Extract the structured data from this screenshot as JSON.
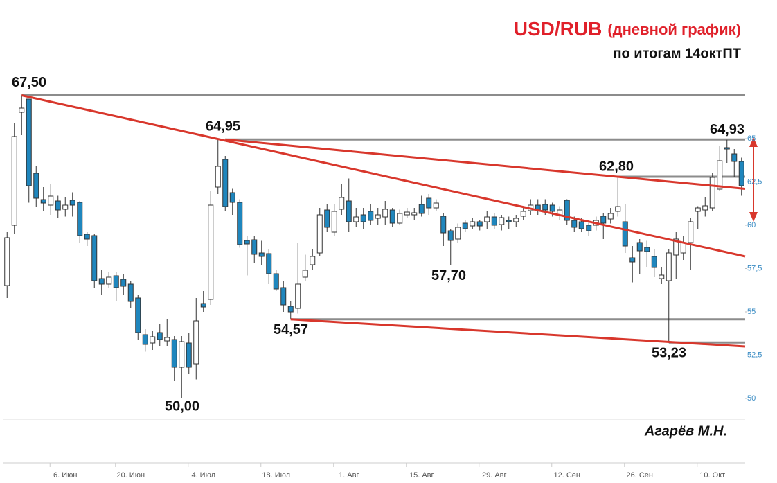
{
  "chart_data": {
    "type": "candlestick",
    "title": "USD/RUB",
    "subtitle": "(дневной график)",
    "note": "по итогам 14октПТ",
    "author": "Агарёв М.Н.",
    "up_color": "#ffffff",
    "down_color": "#1f86bd",
    "level_color": "#8c8c8c",
    "trend_color": "#d8372c",
    "categories": [
      null,
      null,
      null,
      null,
      null,
      null,
      null,
      null,
      "6. Июн",
      null,
      null,
      null,
      null,
      null,
      null,
      null,
      null,
      "20. Июн",
      null,
      null,
      null,
      null,
      null,
      null,
      null,
      null,
      null,
      "4. Июл",
      null,
      null,
      null,
      null,
      null,
      null,
      null,
      null,
      null,
      "18. Июл",
      null,
      null,
      null,
      null,
      null,
      null,
      null,
      null,
      null,
      "1. Авг",
      null,
      null,
      null,
      null,
      null,
      null,
      null,
      null,
      null,
      "15. Авг",
      null,
      null,
      null,
      null,
      null,
      null,
      null,
      null,
      null,
      "29. Авг",
      null,
      null,
      null,
      null,
      null,
      null,
      null,
      null,
      null,
      "12. Сен",
      null,
      null,
      null,
      null,
      null,
      null,
      null,
      null,
      null,
      "26. Сен",
      null,
      null,
      null,
      null,
      null,
      null,
      null,
      null,
      null,
      "10. Окт",
      null,
      null,
      null,
      null
    ],
    "open": [
      56.52,
      60.0,
      66.52,
      67.28,
      63.0,
      61.48,
      61.16,
      61.4,
      60.92,
      61.44,
      61.32,
      59.48,
      59.4,
      56.92,
      56.6,
      57.08,
      56.88,
      56.6,
      55.8,
      53.68,
      53.2,
      53.8,
      53.32,
      53.4,
      51.8,
      53.2,
      52.0,
      55.48,
      55.72,
      62.2,
      63.8,
      61.88,
      61.32,
      59.12,
      59.16,
      58.4,
      58.36,
      57.2,
      56.4,
      55.32,
      55.2,
      57.0,
      57.72,
      58.4,
      60.88,
      59.6,
      60.92,
      61.4,
      60.2,
      60.6,
      60.8,
      60.4,
      60.48,
      60.88,
      60.12,
      60.6,
      60.6,
      61.2,
      61.56,
      61.0,
      60.52,
      59.68,
      59.2,
      60.12,
      59.96,
      60.2,
      60.2,
      60.48,
      60.04,
      60.28,
      60.2,
      60.52,
      60.84,
      61.16,
      61.2,
      61.16,
      60.6,
      61.44,
      60.28,
      60.2,
      60.0,
      60.0,
      60.52,
      60.36,
      60.8,
      60.2,
      58.12,
      59.0,
      58.72,
      58.2,
      56.92,
      56.8,
      58.28,
      58.4,
      59.0,
      60.8,
      60.88,
      61.0,
      62.08,
      64.48,
      64.12,
      63.68
    ],
    "high": [
      59.6,
      65.88,
      67.5,
      67.3,
      63.4,
      62.2,
      62.4,
      61.7,
      61.6,
      61.9,
      61.4,
      59.6,
      59.5,
      57.4,
      57.3,
      57.3,
      57.2,
      56.8,
      56.0,
      54.0,
      53.9,
      54.3,
      54.6,
      53.6,
      53.6,
      53.8,
      55.8,
      56.2,
      62.0,
      64.95,
      64.0,
      62.1,
      61.5,
      59.4,
      59.4,
      59.1,
      58.6,
      57.4,
      56.8,
      55.6,
      59.0,
      58.3,
      58.6,
      61.0,
      61.2,
      61.2,
      62.4,
      62.7,
      61.0,
      61.0,
      61.2,
      61.0,
      61.4,
      61.0,
      60.9,
      61.0,
      61.0,
      61.7,
      61.8,
      61.5,
      60.7,
      59.8,
      60.1,
      60.3,
      60.4,
      60.3,
      60.8,
      60.7,
      60.6,
      60.5,
      60.6,
      61.0,
      61.5,
      61.5,
      61.5,
      61.3,
      61.1,
      61.5,
      60.5,
      60.4,
      60.3,
      60.5,
      60.7,
      61.0,
      62.8,
      61.2,
      58.8,
      59.2,
      59.1,
      58.6,
      57.6,
      58.6,
      59.6,
      59.4,
      60.4,
      61.1,
      61.6,
      63.0,
      64.6,
      64.93,
      64.4,
      63.9
    ],
    "low": [
      55.8,
      59.48,
      65.2,
      61.3,
      61.08,
      60.8,
      60.6,
      60.4,
      60.5,
      60.5,
      59.0,
      58.8,
      56.4,
      56.0,
      56.4,
      55.6,
      56.0,
      55.2,
      53.4,
      52.7,
      52.8,
      53.0,
      53.0,
      51.0,
      50.0,
      51.4,
      51.1,
      55.0,
      55.4,
      61.8,
      60.8,
      60.6,
      58.7,
      57.1,
      57.8,
      57.7,
      56.6,
      56.2,
      55.0,
      54.57,
      54.9,
      56.8,
      57.4,
      58.2,
      59.6,
      59.4,
      60.6,
      59.6,
      59.9,
      59.8,
      60.0,
      60.0,
      60.0,
      59.9,
      60.0,
      60.4,
      60.3,
      60.5,
      60.6,
      60.8,
      58.8,
      57.7,
      59.0,
      59.6,
      59.8,
      59.7,
      59.8,
      59.8,
      59.7,
      59.8,
      59.9,
      60.3,
      60.6,
      60.6,
      60.6,
      60.5,
      60.3,
      60.0,
      59.6,
      59.6,
      59.4,
      59.7,
      59.2,
      60.1,
      60.5,
      58.4,
      56.7,
      57.2,
      57.6,
      57.0,
      56.6,
      53.23,
      56.9,
      58.0,
      57.4,
      59.8,
      60.5,
      60.8,
      62.0,
      63.6,
      62.8,
      61.7
    ],
    "close": [
      59.28,
      65.12,
      66.76,
      62.28,
      61.56,
      61.28,
      61.68,
      60.88,
      61.16,
      61.16,
      59.4,
      59.2,
      56.8,
      56.6,
      57.0,
      56.4,
      56.48,
      55.6,
      53.8,
      53.12,
      53.56,
      53.4,
      53.52,
      51.8,
      53.28,
      51.8,
      54.48,
      55.28,
      61.16,
      63.4,
      61.08,
      61.32,
      58.88,
      58.92,
      58.32,
      58.2,
      57.2,
      56.32,
      55.4,
      55.0,
      56.6,
      57.4,
      58.2,
      60.6,
      59.88,
      60.8,
      61.6,
      60.2,
      60.48,
      60.2,
      60.28,
      60.6,
      60.92,
      60.12,
      60.68,
      60.76,
      60.72,
      60.68,
      61.0,
      61.28,
      59.56,
      59.12,
      59.88,
      59.8,
      60.2,
      59.96,
      60.48,
      60.0,
      60.44,
      60.2,
      60.4,
      60.8,
      61.16,
      60.88,
      60.88,
      60.8,
      60.88,
      60.28,
      59.88,
      59.8,
      59.68,
      60.28,
      60.12,
      60.68,
      61.08,
      58.8,
      57.88,
      58.52,
      58.48,
      57.56,
      57.12,
      58.4,
      59.2,
      59.0,
      60.2,
      61.0,
      61.12,
      62.76,
      63.72,
      64.4,
      63.68,
      62.28
    ],
    "levels": [
      67.5,
      64.95,
      62.8,
      54.57,
      53.23
    ],
    "trendlines": [
      [
        67.5,
        58.2
      ],
      [
        64.95,
        62.1
      ],
      [
        54.57,
        53.0
      ]
    ],
    "annotations": [
      {
        "value": 67.5,
        "label": "67,50"
      },
      {
        "value": 64.95,
        "label": "64,95"
      },
      {
        "value": 62.8,
        "label": "62,80"
      },
      {
        "value": 64.93,
        "label": "64,93"
      },
      {
        "value": 57.7,
        "label": "57,70"
      },
      {
        "value": 54.57,
        "label": "54,57"
      },
      {
        "value": 50.0,
        "label": "50,00"
      },
      {
        "value": 53.23,
        "label": "53,23"
      }
    ],
    "ylim": [
      48.8,
      68.4
    ],
    "yticks": [
      50,
      {
        "value": 52.5,
        "label": "52,5"
      },
      55,
      {
        "value": 57.5,
        "label": "57,5"
      },
      60,
      {
        "value": 62.5,
        "label": "62,5"
      },
      65
    ]
  }
}
